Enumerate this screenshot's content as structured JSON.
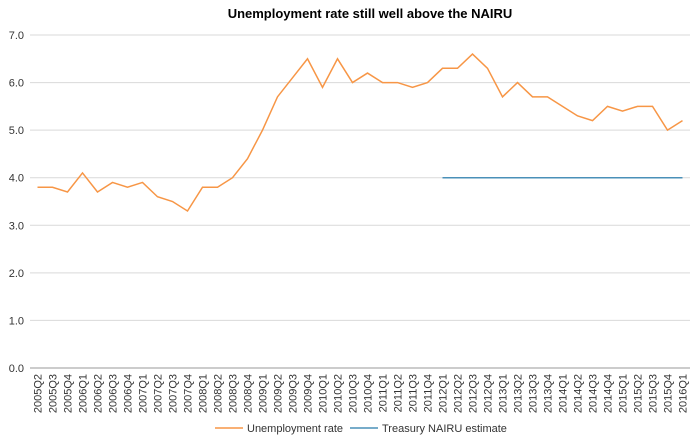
{
  "chart_data": {
    "type": "line",
    "title": "Unemployment rate still well above the NAIRU",
    "categories": [
      "2005Q2",
      "2005Q3",
      "2005Q4",
      "2006Q1",
      "2006Q2",
      "2006Q3",
      "2006Q4",
      "2007Q1",
      "2007Q2",
      "2007Q3",
      "2007Q4",
      "2008Q1",
      "2008Q2",
      "2008Q3",
      "2008Q4",
      "2009Q1",
      "2009Q2",
      "2009Q3",
      "2009Q4",
      "2010Q1",
      "2010Q2",
      "2010Q3",
      "2010Q4",
      "2011Q1",
      "2011Q2",
      "2011Q3",
      "2011Q4",
      "2012Q1",
      "2012Q2",
      "2012Q3",
      "2012Q4",
      "2013Q1",
      "2013Q2",
      "2013Q3",
      "2013Q4",
      "2014Q1",
      "2014Q2",
      "2014Q3",
      "2014Q4",
      "2015Q1",
      "2015Q2",
      "2015Q3",
      "2015Q4",
      "2016Q1"
    ],
    "series": [
      {
        "name": "Unemployment rate",
        "color": "#f79646",
        "values": [
          3.8,
          3.8,
          3.7,
          4.1,
          3.7,
          3.9,
          3.8,
          3.9,
          3.6,
          3.5,
          3.3,
          3.8,
          3.8,
          4.0,
          4.4,
          5.0,
          5.7,
          6.1,
          6.5,
          5.9,
          6.5,
          6.0,
          6.2,
          6.0,
          6.0,
          5.9,
          6.0,
          6.3,
          6.3,
          6.6,
          6.3,
          5.7,
          6.0,
          5.7,
          5.7,
          5.5,
          5.3,
          5.2,
          5.5,
          5.4,
          5.5,
          5.5,
          5.0,
          5.2
        ]
      },
      {
        "name": "Treasury NAIRU estimate",
        "color": "#4a90b8",
        "values": [
          null,
          null,
          null,
          null,
          null,
          null,
          null,
          null,
          null,
          null,
          null,
          null,
          null,
          null,
          null,
          null,
          null,
          null,
          null,
          null,
          null,
          null,
          null,
          null,
          null,
          null,
          null,
          4.0,
          4.0,
          4.0,
          4.0,
          4.0,
          4.0,
          4.0,
          4.0,
          4.0,
          4.0,
          4.0,
          4.0,
          4.0,
          4.0,
          4.0,
          4.0,
          4.0
        ]
      }
    ],
    "ylim": [
      0,
      7
    ],
    "yticks": [
      {
        "value": 0,
        "label": "0.0"
      },
      {
        "value": 1,
        "label": "1.0"
      },
      {
        "value": 2,
        "label": "2.0"
      },
      {
        "value": 3,
        "label": "3.0"
      },
      {
        "value": 4,
        "label": "4.0"
      },
      {
        "value": 5,
        "label": "5.0"
      },
      {
        "value": 6,
        "label": "6.0"
      },
      {
        "value": 7,
        "label": "7.0"
      }
    ],
    "grid": true,
    "legend": "bottom"
  }
}
